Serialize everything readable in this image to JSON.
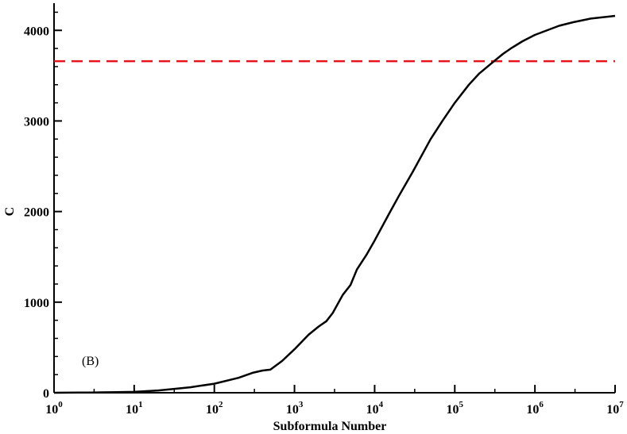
{
  "chart_data": {
    "type": "line",
    "xlabel": "Subformula Number",
    "ylabel": "C",
    "panel_label": "(B)",
    "x_scale": "log",
    "xlim": [
      1,
      10000000
    ],
    "ylim": [
      0,
      4300
    ],
    "x_ticks": [
      {
        "value": 1,
        "base": "10",
        "exp": "0"
      },
      {
        "value": 10,
        "base": "10",
        "exp": "1"
      },
      {
        "value": 100,
        "base": "10",
        "exp": "2"
      },
      {
        "value": 1000,
        "base": "10",
        "exp": "3"
      },
      {
        "value": 10000,
        "base": "10",
        "exp": "4"
      },
      {
        "value": 100000,
        "base": "10",
        "exp": "5"
      },
      {
        "value": 1000000,
        "base": "10",
        "exp": "6"
      },
      {
        "value": 10000000,
        "base": "10",
        "exp": "7"
      }
    ],
    "y_ticks": [
      "0",
      "1000",
      "2000",
      "3000",
      "4000"
    ],
    "grid": false,
    "colors": {
      "curve": "#000000",
      "reference_line": "#e8141c"
    },
    "reference_line": {
      "y": 3660,
      "style": "dashed"
    },
    "series": [
      {
        "x": [
          1,
          2,
          3,
          5,
          10,
          20,
          30,
          50,
          100,
          200,
          300,
          400,
          500,
          700,
          1000,
          1500,
          2000,
          2500,
          3000,
          4000,
          5000,
          6000,
          8000,
          10000,
          15000,
          20000,
          30000,
          50000,
          70000,
          100000,
          150000,
          200000,
          300000,
          400000,
          500000,
          700000,
          1000000,
          2000000,
          3000000,
          5000000,
          10000000
        ],
        "y": [
          0,
          2,
          3,
          5,
          10,
          25,
          40,
          60,
          100,
          165,
          220,
          245,
          255,
          350,
          480,
          640,
          730,
          790,
          880,
          1080,
          1190,
          1360,
          1530,
          1680,
          1970,
          2170,
          2440,
          2800,
          3000,
          3200,
          3400,
          3520,
          3650,
          3740,
          3800,
          3880,
          3950,
          4050,
          4090,
          4130,
          4160
        ]
      }
    ]
  }
}
